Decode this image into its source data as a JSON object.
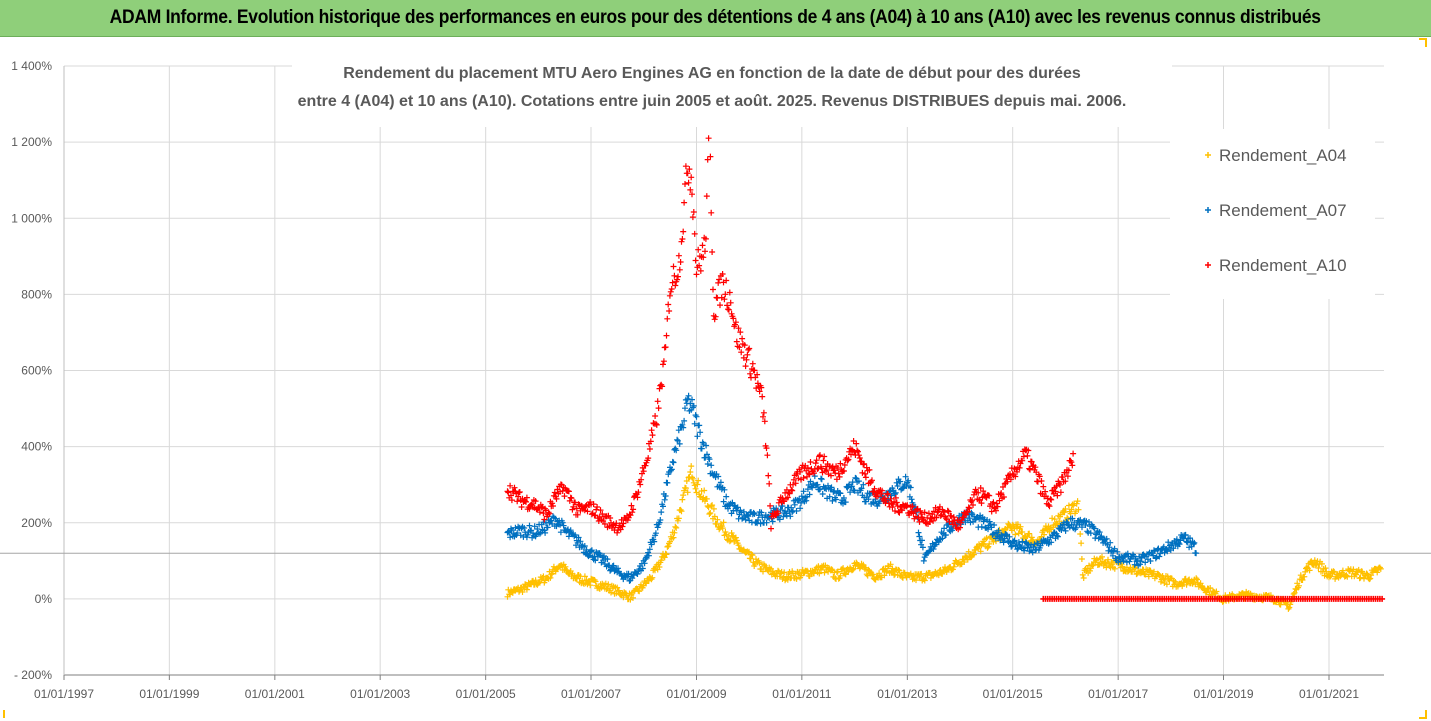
{
  "banner": {
    "title": "ADAM Informe. Evolution historique des performances en euros pour des détentions de 4 ans (A04) à 10 ans (A10) avec les revenus connus distribués"
  },
  "chart_data": {
    "type": "scatter",
    "title_line1": "Rendement du placement MTU Aero Engines AG en fonction de la date de début pour des durées",
    "title_line2": "entre 4 (A04) et 10 ans (A10). Cotations entre juin 2005 et août. 2025. Revenus DISTRIBUES depuis mai. 2006.",
    "xlabel": "",
    "ylabel": "",
    "x_range": [
      "1997-01-01",
      "2022-06-01"
    ],
    "x_ticks": [
      "01/01/1997",
      "01/01/1999",
      "01/01/2001",
      "01/01/2003",
      "01/01/2005",
      "01/01/2007",
      "01/01/2009",
      "01/01/2011",
      "01/01/2013",
      "01/01/2015",
      "01/01/2017",
      "01/01/2019",
      "01/01/2021"
    ],
    "ylim": [
      -200,
      1400
    ],
    "y_ticks": [
      -200,
      0,
      200,
      400,
      600,
      800,
      1000,
      1200,
      1400
    ],
    "y_tick_labels": [
      "- 200%",
      "0%",
      "200%",
      "400%",
      "600%",
      "800%",
      "1 000%",
      "1 200%",
      "1 400%"
    ],
    "reference_line_y": 120,
    "grid": true,
    "legend_position": "top-right",
    "marker": "+",
    "series": [
      {
        "name": "Rendement_A04",
        "color": "#ffc000",
        "points": [
          [
            "2005-06-01",
            15
          ],
          [
            "2005-09-01",
            25
          ],
          [
            "2005-12-01",
            40
          ],
          [
            "2006-03-01",
            55
          ],
          [
            "2006-05-01",
            80
          ],
          [
            "2006-06-01",
            90
          ],
          [
            "2006-08-01",
            65
          ],
          [
            "2006-11-01",
            50
          ],
          [
            "2007-02-01",
            40
          ],
          [
            "2007-05-01",
            30
          ],
          [
            "2007-08-01",
            15
          ],
          [
            "2007-10-01",
            5
          ],
          [
            "2007-12-01",
            25
          ],
          [
            "2008-03-01",
            60
          ],
          [
            "2008-06-01",
            120
          ],
          [
            "2008-08-01",
            180
          ],
          [
            "2008-10-01",
            260
          ],
          [
            "2008-11-01",
            300
          ],
          [
            "2008-12-01",
            340
          ],
          [
            "2009-01-01",
            300
          ],
          [
            "2009-03-01",
            260
          ],
          [
            "2009-06-01",
            200
          ],
          [
            "2009-09-01",
            160
          ],
          [
            "2009-12-01",
            120
          ],
          [
            "2010-03-01",
            90
          ],
          [
            "2010-06-01",
            70
          ],
          [
            "2010-09-01",
            60
          ],
          [
            "2011-01-01",
            65
          ],
          [
            "2011-06-01",
            80
          ],
          [
            "2011-09-01",
            60
          ],
          [
            "2012-01-01",
            90
          ],
          [
            "2012-06-01",
            60
          ],
          [
            "2012-09-01",
            80
          ],
          [
            "2013-01-01",
            55
          ],
          [
            "2013-06-01",
            60
          ],
          [
            "2013-10-01",
            75
          ],
          [
            "2014-01-01",
            100
          ],
          [
            "2014-05-01",
            130
          ],
          [
            "2014-09-01",
            160
          ],
          [
            "2015-01-01",
            190
          ],
          [
            "2015-04-01",
            165
          ],
          [
            "2015-07-01",
            150
          ],
          [
            "2015-10-01",
            200
          ],
          [
            "2016-01-01",
            220
          ],
          [
            "2016-04-01",
            250
          ],
          [
            "2016-05-01",
            60
          ],
          [
            "2016-08-01",
            100
          ],
          [
            "2017-01-01",
            90
          ],
          [
            "2017-06-01",
            70
          ],
          [
            "2017-10-01",
            60
          ],
          [
            "2018-02-01",
            40
          ],
          [
            "2018-06-01",
            50
          ],
          [
            "2018-10-01",
            20
          ],
          [
            "2019-01-01",
            0
          ],
          [
            "2019-06-01",
            10
          ],
          [
            "2019-10-01",
            5
          ],
          [
            "2020-01-01",
            0
          ],
          [
            "2020-04-01",
            -20
          ],
          [
            "2020-06-01",
            40
          ],
          [
            "2020-08-01",
            80
          ],
          [
            "2020-10-01",
            100
          ],
          [
            "2021-01-01",
            60
          ],
          [
            "2021-06-01",
            70
          ],
          [
            "2021-10-01",
            60
          ],
          [
            "2022-01-01",
            80
          ]
        ]
      },
      {
        "name": "Rendement_A07",
        "color": "#0070c0",
        "points": [
          [
            "2005-06-01",
            170
          ],
          [
            "2005-09-01",
            180
          ],
          [
            "2005-12-01",
            175
          ],
          [
            "2006-03-01",
            190
          ],
          [
            "2006-05-01",
            210
          ],
          [
            "2006-07-01",
            180
          ],
          [
            "2006-10-01",
            150
          ],
          [
            "2007-01-01",
            120
          ],
          [
            "2007-04-01",
            100
          ],
          [
            "2007-07-01",
            70
          ],
          [
            "2007-10-01",
            55
          ],
          [
            "2008-01-01",
            90
          ],
          [
            "2008-04-01",
            180
          ],
          [
            "2008-06-01",
            280
          ],
          [
            "2008-08-01",
            380
          ],
          [
            "2008-10-01",
            460
          ],
          [
            "2008-11-01",
            520
          ],
          [
            "2008-12-01",
            500
          ],
          [
            "2009-02-01",
            420
          ],
          [
            "2009-05-01",
            330
          ],
          [
            "2009-08-01",
            250
          ],
          [
            "2009-11-01",
            220
          ],
          [
            "2010-02-01",
            210
          ],
          [
            "2010-06-01",
            220
          ],
          [
            "2010-10-01",
            230
          ],
          [
            "2011-01-01",
            260
          ],
          [
            "2011-04-01",
            310
          ],
          [
            "2011-07-01",
            280
          ],
          [
            "2011-10-01",
            260
          ],
          [
            "2012-01-01",
            300
          ],
          [
            "2012-04-01",
            270
          ],
          [
            "2012-07-01",
            260
          ],
          [
            "2012-10-01",
            290
          ],
          [
            "2013-01-01",
            310
          ],
          [
            "2013-03-01",
            230
          ],
          [
            "2013-05-01",
            100
          ],
          [
            "2013-08-01",
            160
          ],
          [
            "2013-11-01",
            190
          ],
          [
            "2014-02-01",
            220
          ],
          [
            "2014-06-01",
            200
          ],
          [
            "2014-10-01",
            170
          ],
          [
            "2015-02-01",
            140
          ],
          [
            "2015-06-01",
            130
          ],
          [
            "2015-10-01",
            160
          ],
          [
            "2016-02-01",
            200
          ],
          [
            "2016-06-01",
            190
          ],
          [
            "2016-10-01",
            150
          ],
          [
            "2017-01-01",
            110
          ],
          [
            "2017-06-01",
            100
          ],
          [
            "2017-10-01",
            120
          ],
          [
            "2018-01-01",
            140
          ],
          [
            "2018-04-01",
            160
          ],
          [
            "2018-07-01",
            130
          ]
        ]
      },
      {
        "name": "Rendement_A10",
        "color": "#ff0000",
        "points": [
          [
            "2005-06-01",
            290
          ],
          [
            "2005-09-01",
            260
          ],
          [
            "2005-12-01",
            250
          ],
          [
            "2006-03-01",
            220
          ],
          [
            "2006-05-01",
            270
          ],
          [
            "2006-07-01",
            290
          ],
          [
            "2006-10-01",
            230
          ],
          [
            "2007-01-01",
            240
          ],
          [
            "2007-04-01",
            210
          ],
          [
            "2007-07-01",
            190
          ],
          [
            "2007-09-01",
            200
          ],
          [
            "2007-11-01",
            260
          ],
          [
            "2008-02-01",
            380
          ],
          [
            "2008-04-01",
            480
          ],
          [
            "2008-06-01",
            650
          ],
          [
            "2008-07-01",
            820
          ],
          [
            "2008-09-01",
            880
          ],
          [
            "2008-10-01",
            1000
          ],
          [
            "2008-11-01",
            1150
          ],
          [
            "2008-12-01",
            1100
          ],
          [
            "2009-01-01",
            870
          ],
          [
            "2009-03-01",
            920
          ],
          [
            "2009-04-01",
            1240
          ],
          [
            "2009-05-01",
            760
          ],
          [
            "2009-07-01",
            830
          ],
          [
            "2009-09-01",
            780
          ],
          [
            "2009-10-01",
            700
          ],
          [
            "2009-12-01",
            650
          ],
          [
            "2010-02-01",
            600
          ],
          [
            "2010-04-01",
            520
          ],
          [
            "2010-05-01",
            400
          ],
          [
            "2010-06-01",
            200
          ],
          [
            "2010-09-01",
            270
          ],
          [
            "2011-01-01",
            330
          ],
          [
            "2011-05-01",
            360
          ],
          [
            "2011-09-01",
            330
          ],
          [
            "2012-01-01",
            400
          ],
          [
            "2012-05-01",
            300
          ],
          [
            "2012-09-01",
            250
          ],
          [
            "2013-01-01",
            240
          ],
          [
            "2013-05-01",
            210
          ],
          [
            "2013-09-01",
            230
          ],
          [
            "2014-01-01",
            190
          ],
          [
            "2014-05-01",
            280
          ],
          [
            "2014-09-01",
            240
          ],
          [
            "2015-01-01",
            330
          ],
          [
            "2015-04-01",
            380
          ],
          [
            "2015-07-01",
            310
          ],
          [
            "2015-09-01",
            250
          ],
          [
            "2015-12-01",
            300
          ],
          [
            "2016-03-01",
            370
          ]
        ],
        "flat_segment": {
          "from": "2015-08-01",
          "to": "2022-06-01",
          "value": 0
        }
      }
    ]
  }
}
